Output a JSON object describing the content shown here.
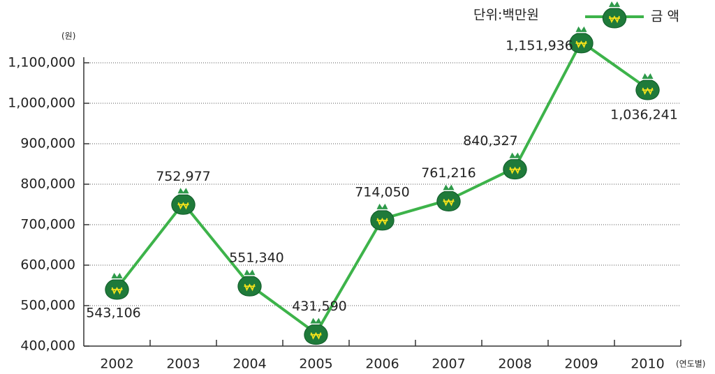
{
  "chart_data": {
    "type": "line",
    "unit_note": "단위:백만원",
    "y_axis_label": "(원)",
    "x_axis_label": "(연도별)",
    "categories": [
      "2002",
      "2003",
      "2004",
      "2005",
      "2006",
      "2007",
      "2008",
      "2009",
      "2010"
    ],
    "series": [
      {
        "name": "금 액",
        "color": "#3db34a",
        "values": [
          543106,
          752977,
          551340,
          431590,
          714050,
          761216,
          840327,
          1151936,
          1036241
        ],
        "value_labels": [
          "543,106",
          "752,977",
          "551,340",
          "431,590",
          "714,050",
          "761,216",
          "840,327",
          "1,151,936",
          "1,036,241"
        ]
      }
    ],
    "ylim": [
      400000,
      1200000
    ],
    "yticks": [
      {
        "value": 400000,
        "label": "400,000"
      },
      {
        "value": 500000,
        "label": "500,000"
      },
      {
        "value": 600000,
        "label": "600,000"
      },
      {
        "value": 700000,
        "label": "700,000"
      },
      {
        "value": 800000,
        "label": "800,000"
      },
      {
        "value": 900000,
        "label": "900,000"
      },
      {
        "value": 1000000,
        "label": "1,000,000"
      },
      {
        "value": 1100000,
        "label": "1,100,000"
      }
    ],
    "grid": true
  }
}
